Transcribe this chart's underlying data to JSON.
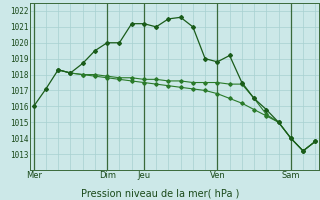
{
  "bg_color": "#cce8e8",
  "grid_color": "#a8d0d0",
  "line_color_dark": "#1a5c1a",
  "line_color_med": "#2a7a2a",
  "xlabel": "Pression niveau de la mer( hPa )",
  "ylim": [
    1012.5,
    1022.5
  ],
  "yticks": [
    1013,
    1014,
    1015,
    1016,
    1017,
    1018,
    1019,
    1020,
    1021,
    1022
  ],
  "xlim": [
    -0.3,
    23.3
  ],
  "series1_x": [
    0,
    1,
    2,
    3,
    4,
    5,
    6,
    7,
    8,
    9,
    10,
    11,
    12,
    13,
    14,
    15,
    16,
    17,
    18,
    19,
    20,
    21,
    22,
    23
  ],
  "series1_y": [
    1016.0,
    1017.1,
    1018.3,
    1018.1,
    1018.7,
    1019.5,
    1020.0,
    1020.0,
    1021.2,
    1021.2,
    1021.0,
    1021.5,
    1021.6,
    1021.0,
    1019.0,
    1018.8,
    1019.2,
    1017.5,
    1016.5,
    1015.8,
    1015.0,
    1014.0,
    1013.2,
    1013.8
  ],
  "series2_x": [
    2,
    3,
    4,
    5,
    6,
    7,
    8,
    9,
    10,
    11,
    12,
    13,
    14,
    15,
    16,
    17,
    18,
    19,
    20,
    21,
    22,
    23
  ],
  "series2_y": [
    1018.3,
    1018.1,
    1018.0,
    1018.0,
    1017.9,
    1017.8,
    1017.8,
    1017.7,
    1017.7,
    1017.6,
    1017.6,
    1017.5,
    1017.5,
    1017.5,
    1017.4,
    1017.4,
    1016.5,
    1015.5,
    1015.0,
    1014.0,
    1013.2,
    1013.8
  ],
  "series3_x": [
    2,
    3,
    4,
    5,
    6,
    7,
    8,
    9,
    10,
    11,
    12,
    13,
    14,
    15,
    16,
    17,
    18,
    19,
    20,
    21,
    22,
    23
  ],
  "series3_y": [
    1018.3,
    1018.1,
    1018.0,
    1017.9,
    1017.8,
    1017.7,
    1017.6,
    1017.5,
    1017.4,
    1017.3,
    1017.2,
    1017.1,
    1017.0,
    1016.8,
    1016.5,
    1016.2,
    1015.8,
    1015.4,
    1015.0,
    1014.0,
    1013.2,
    1013.8
  ],
  "day_line_positions": [
    0,
    6,
    9,
    15,
    21
  ],
  "xtick_positions": [
    0,
    6,
    9,
    15,
    21
  ],
  "xtick_labels": [
    "Mer",
    "Dim",
    "Jeu",
    "Ven",
    "Sam"
  ]
}
